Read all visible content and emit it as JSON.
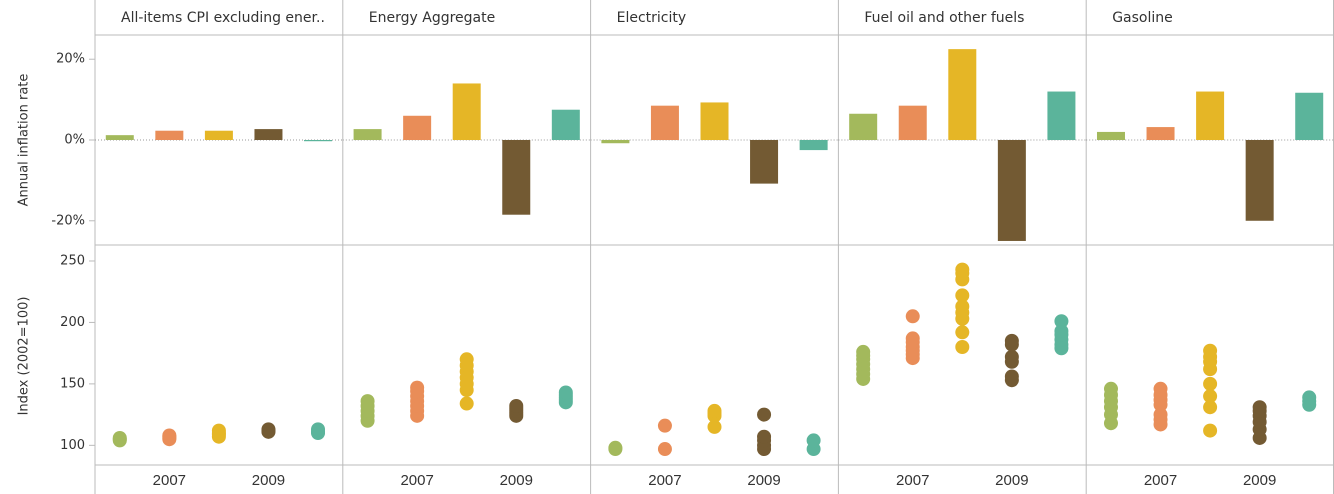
{
  "chart_data": [
    {
      "type": "bar",
      "y_label": "Annual inflation rate",
      "ylim": [
        -26,
        26
      ],
      "yticks": [
        {
          "value": 20,
          "label": "20%"
        },
        {
          "value": 0,
          "label": "0%"
        },
        {
          "value": -20,
          "label": "-20%"
        }
      ],
      "colors": [
        "#a3b95c",
        "#e98d58",
        "#e5b626",
        "#735a33",
        "#5bb49b"
      ],
      "facets": [
        {
          "title": "All-items CPI excluding ener..",
          "values": [
            1.2,
            2.3,
            2.3,
            2.7,
            -0.3
          ]
        },
        {
          "title": "Energy Aggregate",
          "values": [
            2.7,
            6.0,
            14.0,
            -18.5,
            7.5
          ]
        },
        {
          "title": "Electricity",
          "values": [
            -0.8,
            8.5,
            9.3,
            -10.8,
            -2.5
          ]
        },
        {
          "title": "Fuel oil and other fuels",
          "values": [
            6.5,
            8.5,
            22.5,
            -25.0,
            12.0
          ]
        },
        {
          "title": "Gasoline",
          "values": [
            2.0,
            3.2,
            12.0,
            -20.0,
            11.7
          ]
        }
      ]
    },
    {
      "type": "strip",
      "y_label": "Index (2002=100)",
      "ylim": [
        84,
        263
      ],
      "yticks": [
        100,
        150,
        200,
        250
      ],
      "categories": [
        null,
        "2007",
        null,
        "2009",
        null
      ],
      "facets": [
        {
          "values": [
            [
              104,
              105,
              106
            ],
            [
              105,
              106,
              107,
              108
            ],
            [
              107,
              109,
              110,
              112
            ],
            [
              111,
              112,
              113
            ],
            [
              110,
              111,
              113
            ]
          ]
        },
        {
          "values": [
            [
              120,
              124,
              128,
              132,
              136
            ],
            [
              124,
              128,
              132,
              136,
              140,
              144,
              147
            ],
            [
              134,
              145,
              150,
              155,
              160,
              165,
              170
            ],
            [
              124,
              126,
              128,
              130,
              132
            ],
            [
              135,
              137,
              139,
              141,
              143
            ]
          ]
        },
        {
          "values": [
            [
              97,
              98
            ],
            [
              97,
              116
            ],
            [
              115,
              124,
              126,
              128
            ],
            [
              97,
              100,
              104,
              107,
              125
            ],
            [
              97,
              104
            ]
          ]
        },
        {
          "values": [
            [
              154,
              158,
              162,
              166,
              170,
              173,
              176
            ],
            [
              171,
              174,
              177,
              180,
              184,
              187,
              205
            ],
            [
              180,
              192,
              203,
              208,
              213,
              222,
              235,
              240,
              243
            ],
            [
              153,
              156,
              168,
              172,
              182,
              185
            ],
            [
              179,
              182,
              186,
              190,
              193,
              201
            ]
          ]
        },
        {
          "values": [
            [
              118,
              125,
              131,
              136,
              141,
              146
            ],
            [
              117,
              121,
              125,
              133,
              137,
              141,
              146
            ],
            [
              112,
              131,
              140,
              150,
              162,
              168,
              172,
              177
            ],
            [
              106,
              113,
              119,
              124,
              128,
              131
            ],
            [
              133,
              136,
              139
            ]
          ]
        }
      ]
    }
  ]
}
